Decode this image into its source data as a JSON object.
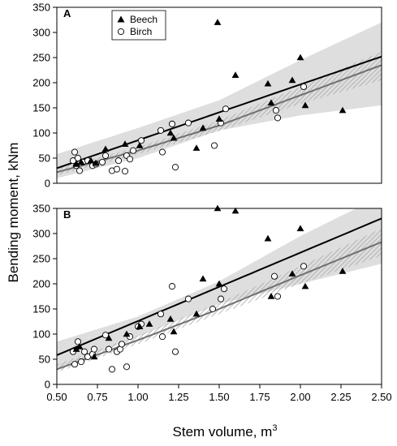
{
  "figure": {
    "ylabel": "Bending moment, kNm",
    "xlabel_main": "Stem volume, m",
    "xlabel_sup": "3",
    "legend": [
      {
        "label": "Beech",
        "marker": "filled-triangle"
      },
      {
        "label": "Birch",
        "marker": "open-circle"
      }
    ],
    "colors": {
      "fit_beech": "#000000",
      "fit_birch": "#707070",
      "band_beech": "#dedede",
      "band_birch_hatch": "#a8a8a8"
    }
  },
  "chart_data": [
    {
      "type": "scatter",
      "panel": "A",
      "xlim": [
        0.5,
        2.5
      ],
      "ylim": [
        0,
        350
      ],
      "xticks": [
        "0.50",
        "0.75",
        "1.00",
        "1.25",
        "1.50",
        "1.75",
        "2.00",
        "2.25",
        "2.50"
      ],
      "xtick_values": [
        0.5,
        0.75,
        1.0,
        1.25,
        1.5,
        1.75,
        2.0,
        2.25,
        2.5
      ],
      "yticks": [
        0,
        50,
        100,
        150,
        200,
        250,
        300,
        350
      ],
      "series": [
        {
          "name": "Beech",
          "x": [
            0.62,
            0.65,
            0.71,
            0.74,
            0.8,
            0.92,
            1.01,
            1.2,
            1.22,
            1.36,
            1.4,
            1.49,
            1.5,
            1.6,
            1.8,
            1.82,
            1.95,
            2.0,
            2.03,
            2.26
          ],
          "y": [
            38,
            42,
            45,
            40,
            68,
            78,
            75,
            100,
            90,
            70,
            110,
            320,
            128,
            215,
            198,
            160,
            205,
            250,
            155,
            145
          ]
        },
        {
          "name": "Birch",
          "x": [
            0.6,
            0.61,
            0.62,
            0.63,
            0.64,
            0.66,
            0.69,
            0.72,
            0.74,
            0.78,
            0.8,
            0.84,
            0.87,
            0.88,
            0.92,
            0.93,
            0.95,
            0.97,
            1.02,
            1.14,
            1.15,
            1.21,
            1.23,
            1.31,
            1.47,
            1.51,
            1.54,
            1.85,
            1.86,
            2.02
          ],
          "y": [
            45,
            62,
            35,
            50,
            25,
            42,
            45,
            35,
            38,
            42,
            55,
            25,
            28,
            45,
            24,
            55,
            48,
            65,
            85,
            105,
            62,
            118,
            32,
            120,
            75,
            120,
            148,
            145,
            130,
            192
          ]
        }
      ],
      "fits": [
        {
          "name": "Beech",
          "x": [
            0.5,
            2.5
          ],
          "y": [
            30,
            252
          ],
          "band_upper_at_x": [
            [
              0.5,
              58
            ],
            [
              1.0,
              110
            ],
            [
              1.5,
              165
            ],
            [
              2.0,
              245
            ],
            [
              2.5,
              320
            ]
          ],
          "band_lower_at_x": [
            [
              0.5,
              10
            ],
            [
              1.0,
              50
            ],
            [
              1.5,
              105
            ],
            [
              2.0,
              135
            ],
            [
              2.5,
              155
            ]
          ]
        },
        {
          "name": "Birch",
          "x": [
            0.5,
            1.0,
            1.5,
            2.0,
            2.5
          ],
          "y": [
            22,
            65,
            115,
            175,
            235
          ],
          "band_upper_at_x": [
            [
              0.5,
              30
            ],
            [
              1.0,
              72
            ],
            [
              1.5,
              125
            ],
            [
              2.0,
              192
            ],
            [
              2.5,
              262
            ]
          ],
          "band_lower_at_x": [
            [
              0.5,
              16
            ],
            [
              1.0,
              58
            ],
            [
              1.5,
              104
            ],
            [
              2.0,
              158
            ],
            [
              2.5,
              205
            ]
          ]
        }
      ]
    },
    {
      "type": "scatter",
      "panel": "B",
      "xlim": [
        0.5,
        2.5
      ],
      "ylim": [
        0,
        350
      ],
      "xticks": [
        "0.50",
        "0.75",
        "1.00",
        "1.25",
        "1.50",
        "1.75",
        "2.00",
        "2.25",
        "2.50"
      ],
      "xtick_values": [
        0.5,
        0.75,
        1.0,
        1.25,
        1.5,
        1.75,
        2.0,
        2.25,
        2.5
      ],
      "yticks": [
        0,
        50,
        100,
        150,
        200,
        250,
        300,
        350
      ],
      "series": [
        {
          "name": "Beech",
          "x": [
            0.62,
            0.64,
            0.73,
            0.82,
            0.93,
            1.01,
            1.07,
            1.2,
            1.22,
            1.36,
            1.4,
            1.49,
            1.5,
            1.6,
            1.8,
            1.82,
            1.95,
            2.0,
            2.03,
            2.26
          ],
          "y": [
            70,
            75,
            55,
            92,
            100,
            115,
            120,
            130,
            105,
            140,
            210,
            350,
            200,
            345,
            290,
            175,
            220,
            310,
            195,
            225
          ]
        },
        {
          "name": "Birch",
          "x": [
            0.6,
            0.61,
            0.63,
            0.65,
            0.67,
            0.69,
            0.72,
            0.73,
            0.8,
            0.82,
            0.84,
            0.87,
            0.89,
            0.9,
            0.93,
            0.95,
            1.0,
            1.02,
            1.14,
            1.15,
            1.21,
            1.23,
            1.31,
            1.46,
            1.51,
            1.53,
            1.84,
            1.86,
            2.02
          ],
          "y": [
            65,
            40,
            85,
            45,
            65,
            55,
            60,
            70,
            98,
            70,
            30,
            65,
            70,
            80,
            35,
            95,
            115,
            120,
            140,
            95,
            195,
            65,
            170,
            150,
            170,
            190,
            215,
            175,
            235
          ]
        }
      ],
      "fits": [
        {
          "name": "Beech",
          "x": [
            0.5,
            2.5
          ],
          "y": [
            58,
            330
          ],
          "band_upper_at_x": [
            [
              0.5,
              85
            ],
            [
              1.0,
              135
            ],
            [
              1.5,
              205
            ],
            [
              2.0,
              295
            ],
            [
              2.5,
              375
            ]
          ],
          "band_lower_at_x": [
            [
              0.5,
              30
            ],
            [
              1.0,
              95
            ],
            [
              1.5,
              160
            ],
            [
              2.0,
              200
            ],
            [
              2.5,
              240
            ]
          ]
        },
        {
          "name": "Birch",
          "x": [
            0.5,
            1.0,
            1.5,
            2.0,
            2.5
          ],
          "y": [
            30,
            88,
            150,
            217,
            283
          ],
          "band_upper_at_x": [
            [
              0.5,
              40
            ],
            [
              1.0,
              97
            ],
            [
              1.5,
              162
            ],
            [
              2.0,
              235
            ],
            [
              2.5,
              310
            ]
          ],
          "band_lower_at_x": [
            [
              0.5,
              24
            ],
            [
              1.0,
              80
            ],
            [
              1.5,
              140
            ],
            [
              2.0,
              200
            ],
            [
              2.5,
              256
            ]
          ]
        }
      ]
    }
  ]
}
